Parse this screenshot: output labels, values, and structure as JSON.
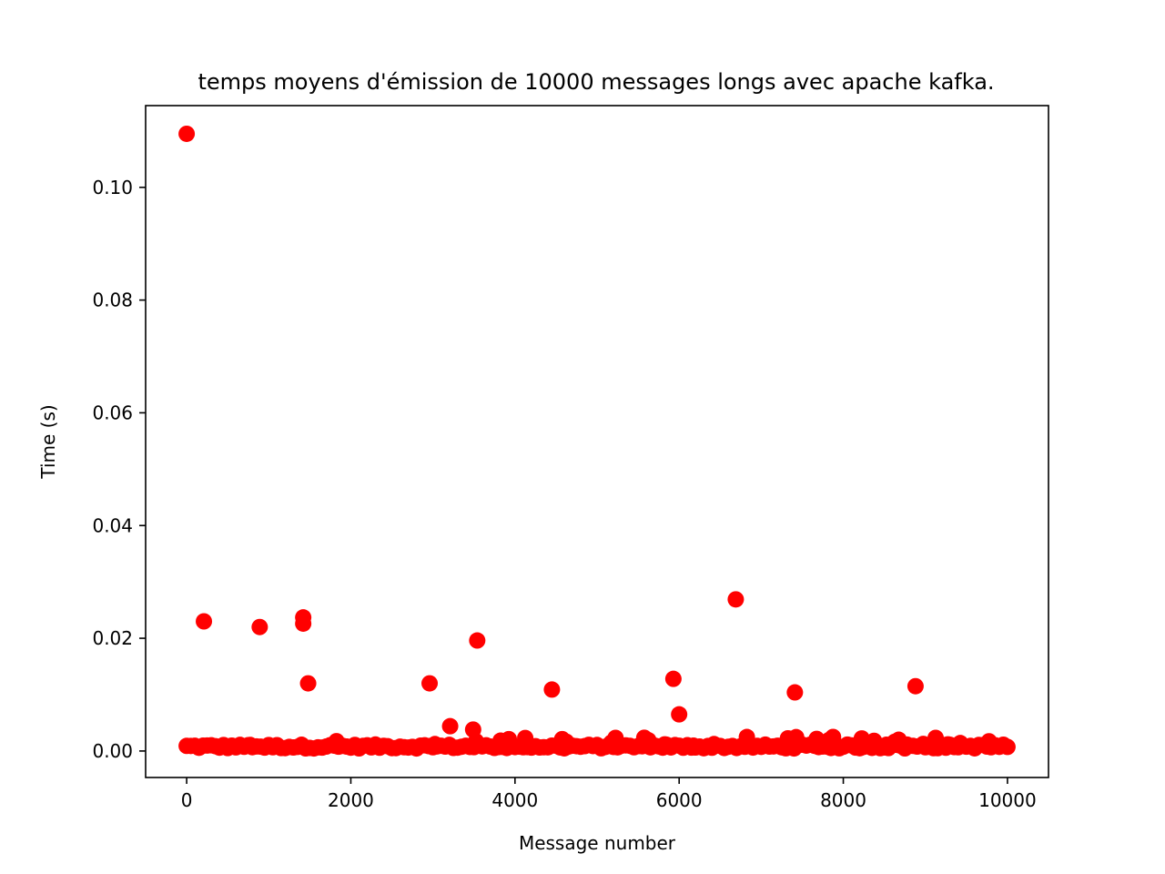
{
  "chart_data": {
    "type": "scatter",
    "title": "temps moyens d'émission de 10000 messages longs avec apache kafka.",
    "xlabel": "Message number",
    "ylabel": "Time (s)",
    "xlim": [
      -500,
      10500
    ],
    "ylim": [
      -0.0047,
      0.1145
    ],
    "xticks": [
      0,
      2000,
      4000,
      6000,
      8000,
      10000
    ],
    "xtick_labels": [
      "0",
      "2000",
      "4000",
      "6000",
      "8000",
      "10000"
    ],
    "yticks": [
      0.0,
      0.02,
      0.04,
      0.06,
      0.08,
      0.1
    ],
    "ytick_labels": [
      "0.00",
      "0.02",
      "0.04",
      "0.06",
      "0.08",
      "0.10"
    ],
    "grid": false,
    "marker_color": "#ff0000",
    "outliers": [
      {
        "x": 0,
        "y": 0.1095
      },
      {
        "x": 210,
        "y": 0.023
      },
      {
        "x": 890,
        "y": 0.022
      },
      {
        "x": 1420,
        "y": 0.0237
      },
      {
        "x": 1420,
        "y": 0.0226
      },
      {
        "x": 1480,
        "y": 0.012
      },
      {
        "x": 2960,
        "y": 0.012
      },
      {
        "x": 3540,
        "y": 0.0196
      },
      {
        "x": 4450,
        "y": 0.0109
      },
      {
        "x": 5930,
        "y": 0.0128
      },
      {
        "x": 6000,
        "y": 0.0065
      },
      {
        "x": 6690,
        "y": 0.0269
      },
      {
        "x": 7410,
        "y": 0.0104
      },
      {
        "x": 8880,
        "y": 0.0115
      },
      {
        "x": 3210,
        "y": 0.0044
      },
      {
        "x": 3490,
        "y": 0.0038
      }
    ],
    "baseline": {
      "x_start": 0,
      "x_end": 10000,
      "step": 50,
      "typical_y": 0.0008,
      "jitter": 0.0007,
      "occasional_peak_y": 0.0025
    }
  }
}
